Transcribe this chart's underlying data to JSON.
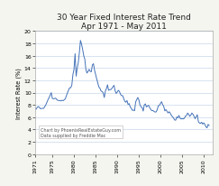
{
  "title": "30 Year Fixed Interest Rate Trend",
  "subtitle": "Apr 1971 - May 2011",
  "ylabel": "Interest Rate (%)",
  "annotation1": "Chart by PhoenixRealEstateGuy.com",
  "annotation2": "Data supplied by Freddie Mac",
  "xlim": [
    1971,
    2012
  ],
  "ylim": [
    0,
    20
  ],
  "yticks": [
    0,
    2,
    4,
    6,
    8,
    10,
    12,
    14,
    16,
    18,
    20
  ],
  "xticks": [
    1971,
    1975,
    1980,
    1985,
    1990,
    1995,
    2000,
    2005,
    2010
  ],
  "line_color": "#4472b8",
  "background_color": "#f5f5f0",
  "plot_bg_color": "#ffffff",
  "grid_color": "#c8d8ea",
  "title_fontsize": 6.5,
  "label_fontsize": 4.8,
  "tick_fontsize": 4.5,
  "annot_fontsize": 3.5,
  "rates": [
    [
      1971.25,
      7.31
    ],
    [
      1971.5,
      7.6
    ],
    [
      1971.75,
      7.73
    ],
    [
      1972.0,
      7.6
    ],
    [
      1972.25,
      7.38
    ],
    [
      1972.5,
      7.41
    ],
    [
      1972.75,
      7.44
    ],
    [
      1973.0,
      7.44
    ],
    [
      1973.25,
      7.73
    ],
    [
      1973.5,
      8.02
    ],
    [
      1973.75,
      8.45
    ],
    [
      1974.0,
      8.85
    ],
    [
      1974.25,
      9.19
    ],
    [
      1974.5,
      9.59
    ],
    [
      1974.75,
      9.99
    ],
    [
      1975.0,
      9.05
    ],
    [
      1975.25,
      8.98
    ],
    [
      1975.5,
      9.03
    ],
    [
      1975.75,
      9.1
    ],
    [
      1976.0,
      8.87
    ],
    [
      1976.25,
      8.74
    ],
    [
      1976.5,
      8.7
    ],
    [
      1976.75,
      8.71
    ],
    [
      1977.0,
      8.65
    ],
    [
      1977.25,
      8.75
    ],
    [
      1977.5,
      8.68
    ],
    [
      1977.75,
      8.82
    ],
    [
      1978.0,
      8.99
    ],
    [
      1978.25,
      9.5
    ],
    [
      1978.5,
      9.99
    ],
    [
      1978.75,
      10.38
    ],
    [
      1979.0,
      10.78
    ],
    [
      1979.25,
      10.78
    ],
    [
      1979.5,
      11.2
    ],
    [
      1979.75,
      12.9
    ],
    [
      1980.0,
      13.74
    ],
    [
      1980.25,
      16.3
    ],
    [
      1980.5,
      12.66
    ],
    [
      1980.75,
      13.95
    ],
    [
      1981.0,
      14.88
    ],
    [
      1981.25,
      16.52
    ],
    [
      1981.5,
      18.45
    ],
    [
      1981.75,
      17.84
    ],
    [
      1982.0,
      17.0
    ],
    [
      1982.25,
      16.0
    ],
    [
      1982.5,
      15.43
    ],
    [
      1982.75,
      13.72
    ],
    [
      1983.0,
      13.16
    ],
    [
      1983.25,
      13.43
    ],
    [
      1983.5,
      13.76
    ],
    [
      1983.75,
      13.44
    ],
    [
      1984.0,
      13.37
    ],
    [
      1984.25,
      14.47
    ],
    [
      1984.5,
      14.68
    ],
    [
      1984.75,
      13.64
    ],
    [
      1985.0,
      12.92
    ],
    [
      1985.25,
      12.22
    ],
    [
      1985.5,
      11.55
    ],
    [
      1985.75,
      10.9
    ],
    [
      1986.0,
      10.71
    ],
    [
      1986.25,
      10.25
    ],
    [
      1986.5,
      10.17
    ],
    [
      1986.75,
      9.97
    ],
    [
      1987.0,
      9.2
    ],
    [
      1987.25,
      10.23
    ],
    [
      1987.5,
      10.62
    ],
    [
      1987.75,
      11.26
    ],
    [
      1988.0,
      10.37
    ],
    [
      1988.25,
      10.47
    ],
    [
      1988.5,
      10.47
    ],
    [
      1988.75,
      10.67
    ],
    [
      1989.0,
      10.93
    ],
    [
      1989.25,
      11.17
    ],
    [
      1989.5,
      10.32
    ],
    [
      1989.75,
      9.86
    ],
    [
      1990.0,
      10.06
    ],
    [
      1990.25,
      10.37
    ],
    [
      1990.5,
      10.18
    ],
    [
      1990.75,
      9.73
    ],
    [
      1991.0,
      9.5
    ],
    [
      1991.25,
      9.51
    ],
    [
      1991.5,
      9.01
    ],
    [
      1991.75,
      8.58
    ],
    [
      1992.0,
      8.43
    ],
    [
      1992.25,
      8.7
    ],
    [
      1992.5,
      8.07
    ],
    [
      1992.75,
      8.21
    ],
    [
      1993.0,
      7.68
    ],
    [
      1993.25,
      7.44
    ],
    [
      1993.5,
      7.11
    ],
    [
      1993.75,
      7.17
    ],
    [
      1994.0,
      7.05
    ],
    [
      1994.25,
      8.47
    ],
    [
      1994.5,
      8.86
    ],
    [
      1994.75,
      9.2
    ],
    [
      1995.0,
      8.83
    ],
    [
      1995.25,
      7.99
    ],
    [
      1995.5,
      7.7
    ],
    [
      1995.75,
      7.55
    ],
    [
      1996.0,
      7.0
    ],
    [
      1996.25,
      8.0
    ],
    [
      1996.5,
      8.16
    ],
    [
      1996.75,
      7.66
    ],
    [
      1997.0,
      7.82
    ],
    [
      1997.25,
      7.93
    ],
    [
      1997.5,
      7.54
    ],
    [
      1997.75,
      7.27
    ],
    [
      1998.0,
      7.06
    ],
    [
      1998.25,
      7.09
    ],
    [
      1998.5,
      6.94
    ],
    [
      1998.75,
      6.83
    ],
    [
      1999.0,
      6.87
    ],
    [
      1999.25,
      7.25
    ],
    [
      1999.5,
      7.88
    ],
    [
      1999.75,
      7.91
    ],
    [
      2000.0,
      8.24
    ],
    [
      2000.25,
      8.52
    ],
    [
      2000.5,
      8.03
    ],
    [
      2000.75,
      7.75
    ],
    [
      2001.0,
      7.03
    ],
    [
      2001.25,
      7.24
    ],
    [
      2001.5,
      6.97
    ],
    [
      2001.75,
      6.69
    ],
    [
      2002.0,
      6.89
    ],
    [
      2002.25,
      6.65
    ],
    [
      2002.5,
      6.31
    ],
    [
      2002.75,
      6.09
    ],
    [
      2003.0,
      5.9
    ],
    [
      2003.25,
      5.56
    ],
    [
      2003.5,
      5.51
    ],
    [
      2003.75,
      6.04
    ],
    [
      2004.0,
      5.88
    ],
    [
      2004.25,
      6.29
    ],
    [
      2004.5,
      5.87
    ],
    [
      2004.75,
      5.72
    ],
    [
      2005.0,
      5.77
    ],
    [
      2005.25,
      5.72
    ],
    [
      2005.5,
      5.82
    ],
    [
      2005.75,
      6.18
    ],
    [
      2006.0,
      6.25
    ],
    [
      2006.25,
      6.68
    ],
    [
      2006.5,
      6.49
    ],
    [
      2006.75,
      6.14
    ],
    [
      2007.0,
      6.34
    ],
    [
      2007.25,
      6.68
    ],
    [
      2007.5,
      6.48
    ],
    [
      2007.75,
      6.14
    ],
    [
      2008.0,
      5.76
    ],
    [
      2008.25,
      6.09
    ],
    [
      2008.5,
      6.41
    ],
    [
      2008.75,
      5.29
    ],
    [
      2009.0,
      5.05
    ],
    [
      2009.25,
      5.01
    ],
    [
      2009.5,
      5.19
    ],
    [
      2009.75,
      4.88
    ],
    [
      2010.0,
      5.09
    ],
    [
      2010.25,
      4.84
    ],
    [
      2010.5,
      4.45
    ],
    [
      2010.75,
      4.27
    ],
    [
      2011.0,
      4.84
    ],
    [
      2011.25,
      4.64
    ]
  ]
}
